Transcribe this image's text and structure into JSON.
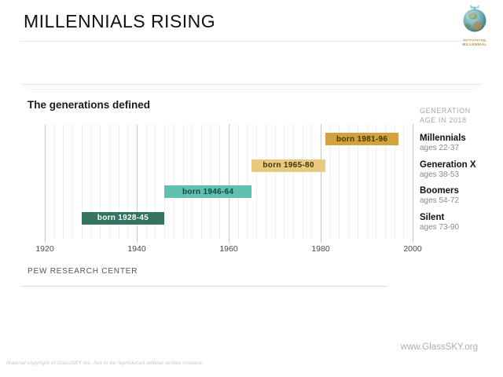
{
  "header": {
    "title": "MILLENNIALS RISING",
    "logo_text": [
      "MOTIVATED",
      "MILLENNIAL"
    ]
  },
  "chart_data": {
    "type": "bar",
    "orientation": "horizontal",
    "title": "The generations defined",
    "legend_header": [
      "GENERATION",
      "AGE IN 2018"
    ],
    "axis": {
      "min": 1920,
      "max": 2000,
      "major_step": 20,
      "minor_step": 2,
      "tick_labels": [
        "1920",
        "1940",
        "1960",
        "1980",
        "2000"
      ]
    },
    "bars": [
      {
        "label": "born 1981-96",
        "start": 1981,
        "end": 1996,
        "generation": "Millennials",
        "ages": "ages 22-37",
        "color": "#d1a33c",
        "label_color": "#43350a"
      },
      {
        "label": "born 1965-80",
        "start": 1965,
        "end": 1980,
        "generation": "Generation X",
        "ages": "ages 38-53",
        "color": "#e9c97e",
        "label_color": "#43350a"
      },
      {
        "label": "born 1946-64",
        "start": 1946,
        "end": 1964,
        "generation": "Boomers",
        "ages": "ages 54-72",
        "color": "#62c0ae",
        "label_color": "#0f473e"
      },
      {
        "label": "born 1928-45",
        "start": 1928,
        "end": 1945,
        "generation": "Silent",
        "ages": "ages 73-90",
        "color": "#33735f",
        "label_color": "#ffffff"
      }
    ],
    "source": "PEW RESEARCH CENTER"
  },
  "footer": {
    "url": "www.GlassSKY.org",
    "copyright": "Material copyright of GlassSKY Inc. Not to be reproduced without written consent."
  }
}
